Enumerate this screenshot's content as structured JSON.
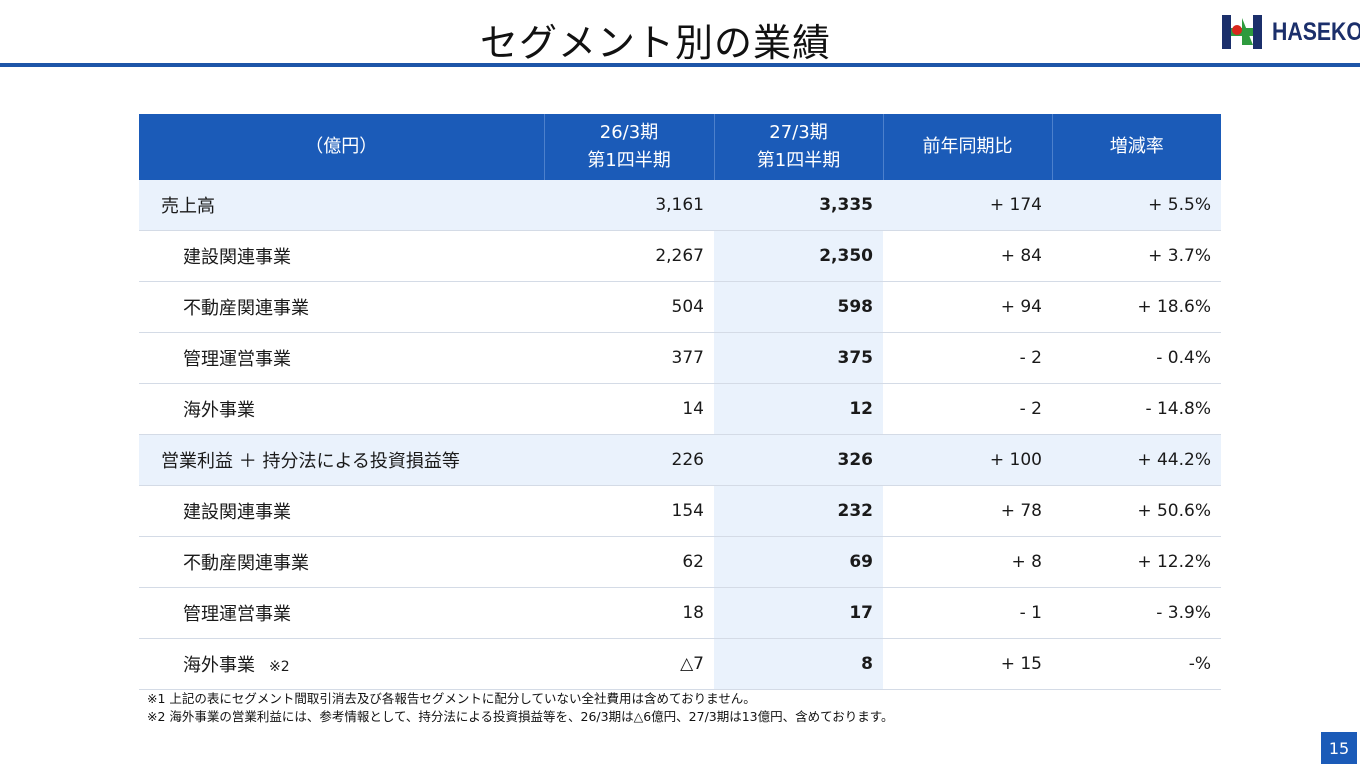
{
  "slide": {
    "title": "セグメント別の業績",
    "logo_text": "HASEKO",
    "page_number": "15"
  },
  "table": {
    "headers": {
      "unit": "（億円）",
      "prev_line1": "26/3期",
      "prev_line2": "第1四半期",
      "cur_line1": "27/3期",
      "cur_line2": "第1四半期",
      "yoy": "前年同期比",
      "rate": "増減率"
    },
    "rows": [
      {
        "label": "売上高",
        "prev": "3,161",
        "cur": "3,335",
        "yoy": "+ 174",
        "rate": "+ 5.5%"
      },
      {
        "label": "建設関連事業",
        "prev": "2,267",
        "cur": "2,350",
        "yoy": "+ 84",
        "rate": "+ 3.7%"
      },
      {
        "label": "不動産関連事業",
        "prev": "504",
        "cur": "598",
        "yoy": "+ 94",
        "rate": "+ 18.6%"
      },
      {
        "label": "管理運営事業",
        "prev": "377",
        "cur": "375",
        "yoy": "-  2",
        "rate": "- 0.4%"
      },
      {
        "label": "海外事業",
        "prev": "14",
        "cur": "12",
        "yoy": "-  2",
        "rate": "- 14.8%"
      },
      {
        "label": "営業利益 ＋ 持分法による投資損益等",
        "prev": "226",
        "cur": "326",
        "yoy": "+ 100",
        "rate": "+ 44.2%"
      },
      {
        "label": "建設関連事業",
        "prev": "154",
        "cur": "232",
        "yoy": "+ 78",
        "rate": "+ 50.6%"
      },
      {
        "label": "不動産関連事業",
        "prev": "62",
        "cur": "69",
        "yoy": "+ 8",
        "rate": "+ 12.2%"
      },
      {
        "label": "管理運営事業",
        "prev": "18",
        "cur": "17",
        "yoy": "-  1",
        "rate": "-  3.9%"
      },
      {
        "label": "海外事業",
        "note": "※2",
        "prev": "△7",
        "cur": "8",
        "yoy": "+ 15",
        "rate": "-%"
      }
    ]
  },
  "notes": {
    "note1": "※1  上記の表にセグメント間取引消去及び各報告セグメントに配分していない全社費用は含めておりません。",
    "note2": "※2 海外事業の営業利益には、参考情報として、持分法による投資損益等を、26/3期は△6億円、27/3期は13億円、含めております。"
  },
  "colors": {
    "header_bg": "#1b5bb8",
    "highlight_row": "#eaf2fc",
    "logo_navy": "#1b2f6b",
    "logo_green": "#2e9b3e",
    "logo_red": "#d9261c"
  }
}
